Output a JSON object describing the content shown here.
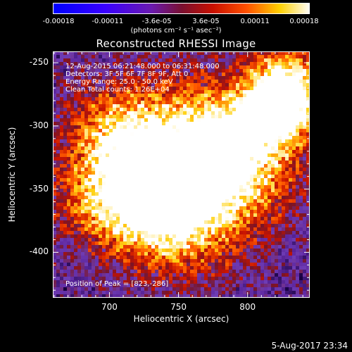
{
  "colorbar": {
    "ticks": [
      "-0.00018",
      "-0.00011",
      "-3.6e-05",
      "3.6e-05",
      "0.00011",
      "0.00018"
    ],
    "units": "(photons cm⁻² s⁻¹ asec⁻²)"
  },
  "header": {
    "title": "Reconstructed RHESSI Image"
  },
  "annotations": {
    "time_range": "12-Aug-2015 06:21:48.000 to 06:31:48.000",
    "detectors": "Detectors: 3F 5F 6F 7F 8F 9F, Att 0",
    "energy": "Energy Range: 25.0 - 50.0 keV",
    "clean": "Clean     Total counts: 1.26E+04",
    "peak": "Position of Peak = [823,-286]"
  },
  "footer": {
    "timestamp": "5-Aug-2017 23:34"
  },
  "chart_data": {
    "type": "heatmap",
    "title": "Reconstructed RHESSI Image",
    "xlabel": "Heliocentric X (arcsec)",
    "ylabel": "Heliocentric Y (arcsec)",
    "xlim": [
      659,
      845
    ],
    "ylim": [
      -436,
      -241
    ],
    "xticks": [
      700,
      750,
      800
    ],
    "yticks": [
      -250,
      -300,
      -350,
      -400
    ],
    "zlim": [
      -0.00018,
      0.00018
    ],
    "colormap": "blue-purple-red-yellow-white",
    "grid": false,
    "peak": [
      823,
      -286
    ]
  }
}
